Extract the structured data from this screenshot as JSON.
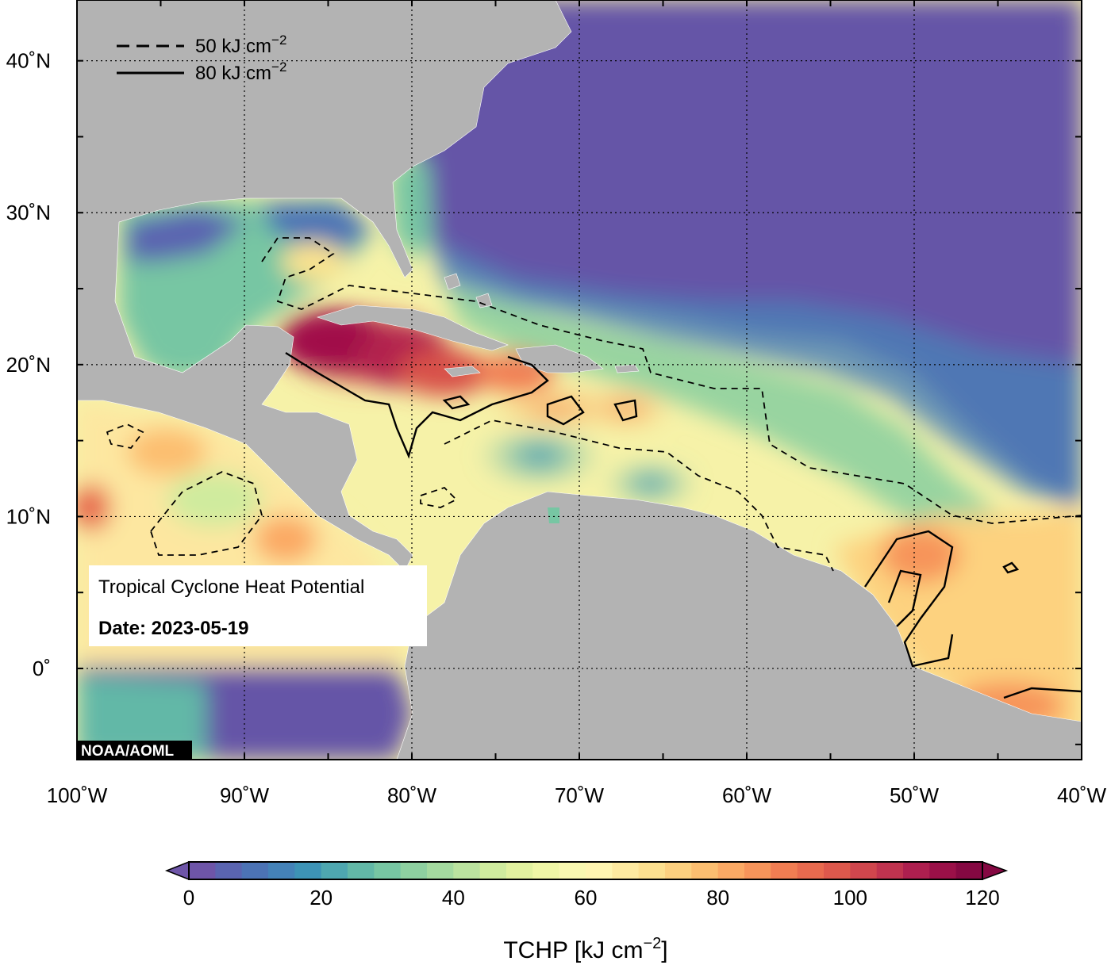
{
  "map": {
    "info_title": "Tropical Cyclone Heat Potential",
    "info_date": "Date: 2023-05-19",
    "credit": "NOAA/AOML",
    "legend": [
      {
        "label": "50 kJ cm",
        "sup": "−2",
        "style": "dashed"
      },
      {
        "label": "80 kJ cm",
        "sup": "−2",
        "style": "solid"
      }
    ],
    "lon_ticks": [
      "100˚W",
      "90˚W",
      "80˚W",
      "70˚W",
      "60˚W",
      "50˚W",
      "40˚W"
    ],
    "lat_ticks": [
      "40˚N",
      "30˚N",
      "20˚N",
      "10˚N",
      "0˚"
    ],
    "extent": {
      "lon_min": -100,
      "lon_max": -40,
      "lat_min": -6,
      "lat_max": 44
    },
    "colors": {
      "land": "#b3b3b3",
      "ocean_low": "#6457a6",
      "ocean_high": "#a1114a"
    }
  },
  "colorbar": {
    "title": "TCHP [kJ cm",
    "title_sup": "−2",
    "title_end": "]",
    "tick_labels": [
      "0",
      "20",
      "40",
      "60",
      "80",
      "100",
      "120"
    ],
    "min": 0,
    "max": 120,
    "step": 4,
    "colors": [
      "#6e55a8",
      "#5a64b0",
      "#4c73b5",
      "#4482b8",
      "#3d93b6",
      "#4ea7b0",
      "#62b8a7",
      "#77c6a3",
      "#8ed0a0",
      "#a4da9f",
      "#bbe39f",
      "#cfeb9e",
      "#e1f19f",
      "#eff6a6",
      "#f9f8b1",
      "#fff5b1",
      "#feeaa0",
      "#fde08f",
      "#fdd07f",
      "#fcbe70",
      "#fba964",
      "#f7945a",
      "#f17d52",
      "#e86a4e",
      "#dd584c",
      "#d0464d",
      "#c0334f",
      "#ae1f4f",
      "#9a1048",
      "#850842"
    ]
  }
}
